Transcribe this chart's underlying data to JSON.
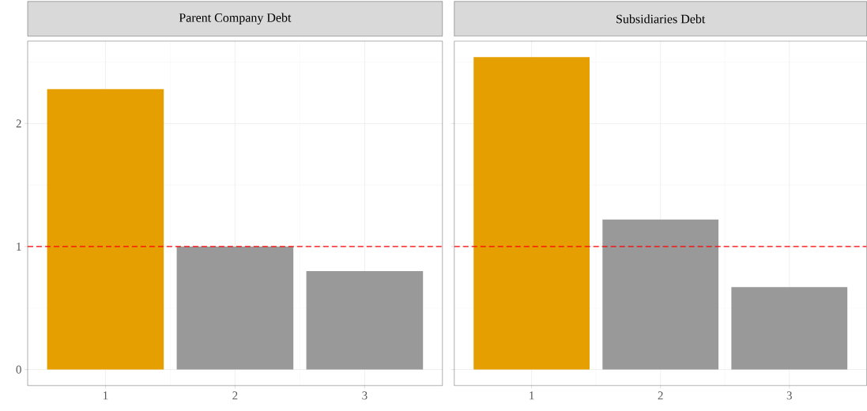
{
  "chart_data": [
    {
      "type": "bar",
      "title": "Parent Company Debt",
      "categories": [
        "1",
        "2",
        "3"
      ],
      "values": [
        2.28,
        1.0,
        0.8
      ],
      "colors": [
        "#e69f00",
        "#999999",
        "#999999"
      ],
      "ylim": [
        -0.13,
        2.67
      ],
      "yticks": [
        0,
        1,
        2
      ],
      "grid": true,
      "ref_lines": [
        {
          "axis": "y",
          "value": 1,
          "color": "#ff0000",
          "line_style": "dashed"
        }
      ]
    },
    {
      "type": "bar",
      "title": "Subsidiaries Debt",
      "categories": [
        "1",
        "2",
        "3"
      ],
      "values": [
        2.54,
        1.22,
        0.67
      ],
      "colors": [
        "#e69f00",
        "#999999",
        "#999999"
      ],
      "ylim": [
        -0.13,
        2.67
      ],
      "yticks": [
        0,
        1,
        2
      ],
      "grid": true,
      "tick_labels": "x",
      "ref_lines": [
        {
          "axis": "y",
          "value": 1,
          "color": "#ff0000",
          "line_style": "dashed"
        }
      ]
    }
  ]
}
